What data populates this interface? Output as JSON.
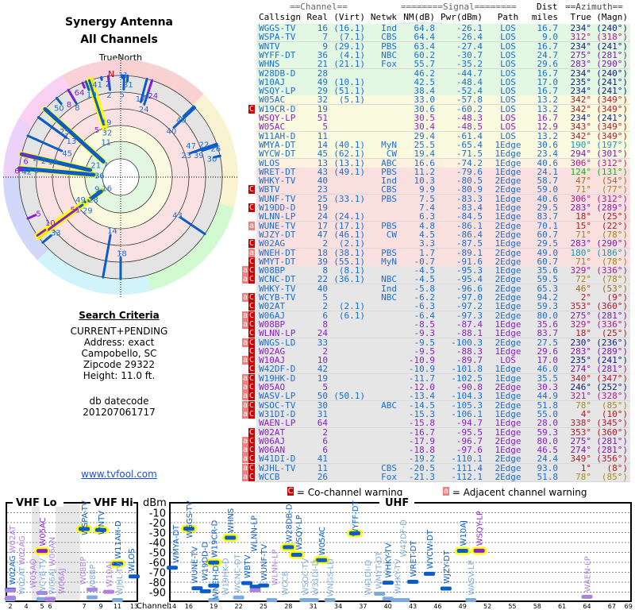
{
  "left": {
    "title1": "Synergy Antenna",
    "title2": "All Channels",
    "north_label": "TrueNorth",
    "n_mark": "N",
    "criteria_title": "Search Criteria",
    "criteria": [
      "CURRENT+PENDING",
      "Address: exact",
      "Campobello, SC",
      "Zipcode 29322",
      "Height: 11.0 ft."
    ],
    "db_label": "db datecode",
    "db_value": "201207061717",
    "link": "www.tvfool.com"
  },
  "table": {
    "group_headers": {
      "channel": "==Channel==",
      "signal": "========Signal========",
      "dist": "Dist",
      "azimuth": "==Azimuth=="
    },
    "columns": [
      "Callsign",
      "Real",
      "(Virt)",
      "Netwk",
      "NM(dB)",
      "Pwr(dBm)",
      "Path",
      "miles",
      "True",
      "(Magn)"
    ],
    "rows": [
      [
        "WGGS-TV",
        "16",
        "(16.1)",
        "Ind",
        "64.8",
        "-26.1",
        "LOS",
        "16.7",
        "234°",
        "(240°)",
        "",
        "green",
        0
      ],
      [
        "WSPA-TV",
        "7",
        "(7.1)",
        "CBS",
        "64.4",
        "-26.4",
        "LOS",
        "9.0",
        "312°",
        "(318°)",
        "",
        "green",
        0
      ],
      [
        "WNTV",
        "9",
        "(29.1)",
        "PBS",
        "63.4",
        "-27.4",
        "LOS",
        "16.7",
        "234°",
        "(241°)",
        "",
        "green",
        0
      ],
      [
        "WYFF-DT",
        "36",
        "(4.1)",
        "NBC",
        "60.2",
        "-30.7",
        "LOS",
        "24.7",
        "275°",
        "(281°)",
        "",
        "green",
        0
      ],
      [
        "WHNS",
        "21",
        "(21.1)",
        "Fox",
        "55.7",
        "-35.2",
        "LOS",
        "29.6",
        "283°",
        "(290°)",
        "",
        "green",
        0
      ],
      [
        "W28DB-D",
        "28",
        "",
        "",
        "46.2",
        "-44.7",
        "LOS",
        "16.7",
        "234°",
        "(240°)",
        "",
        "green",
        0
      ],
      [
        "W10AJ",
        "49",
        "(10.1)",
        "",
        "42.5",
        "-48.4",
        "LOS",
        "17.0",
        "235°",
        "(241°)",
        "",
        "green",
        0
      ],
      [
        "WSQY-LP",
        "29",
        "(51.1)",
        "",
        "38.4",
        "-52.4",
        "LOS",
        "16.7",
        "234°",
        "(241°)",
        "",
        "green",
        0
      ],
      [
        "W05AC",
        "32",
        "(5.1)",
        "",
        "33.0",
        "-57.8",
        "LOS",
        "13.2",
        "342°",
        "(349°)",
        "",
        "yellow",
        0
      ],
      [
        "W19CR-D",
        "19",
        "",
        "",
        "30.6",
        "-60.2",
        "LOS",
        "13.2",
        "342°",
        "(349°)",
        "C",
        "yellow",
        0
      ],
      [
        "WSQY-LP",
        "51",
        "",
        "",
        "30.5",
        "-48.3",
        "LOS",
        "16.7",
        "234°",
        "(241°)",
        "",
        "yellow",
        1
      ],
      [
        "W05AC",
        "5",
        "",
        "",
        "30.4",
        "-48.5",
        "LOS",
        "12.9",
        "343°",
        "(349°)",
        "",
        "yellow",
        1
      ],
      [
        "W11AH-D",
        "11",
        "",
        "",
        "29.4",
        "-61.4",
        "LOS",
        "13.2",
        "342°",
        "(349°)",
        "",
        "yellow",
        0
      ],
      [
        "WMYA-DT",
        "14",
        "(40.1)",
        "MyN",
        "25.5",
        "-65.4",
        "1Edge",
        "30.6",
        "190°",
        "(197°)",
        "",
        "yellow",
        0
      ],
      [
        "WYCW-DT",
        "45",
        "(62.1)",
        "CW",
        "19.4",
        "-71.5",
        "1Edge",
        "23.4",
        "294°",
        "(301°)",
        "",
        "yellow",
        0
      ],
      [
        "WLOS",
        "13",
        "(13.1)",
        "ABC",
        "16.6",
        "-74.2",
        "1Edge",
        "40.6",
        "306°",
        "(312°)",
        "",
        "orange",
        0
      ],
      [
        "WRET-DT",
        "43",
        "(49.1)",
        "PBS",
        "11.2",
        "-79.6",
        "1Edge",
        "24.1",
        "124°",
        "(131°)",
        "",
        "pink",
        0
      ],
      [
        "WHKY-TV",
        "40",
        "",
        "Ind",
        "10.3",
        "-80.5",
        "2Edge",
        "58.7",
        "47°",
        "(54°)",
        "",
        "pink",
        0
      ],
      [
        "WBTV",
        "23",
        "",
        "CBS",
        "9.9",
        "-80.9",
        "2Edge",
        "59.0",
        "71°",
        "(77°)",
        "C",
        "pink",
        0
      ],
      [
        "WUNF-TV",
        "25",
        "(33.1)",
        "PBS",
        "7.5",
        "-83.3",
        "1Edge",
        "40.6",
        "306°",
        "(312°)",
        "",
        "pink",
        0
      ],
      [
        "W19DD-D",
        "19",
        "",
        "",
        "7.4",
        "-83.4",
        "1Edge",
        "29.5",
        "283°",
        "(289°)",
        "C",
        "pink",
        0
      ],
      [
        "WLNN-LP",
        "24",
        "(24.1)",
        "",
        "6.3",
        "-84.5",
        "1Edge",
        "83.7",
        "18°",
        "(25°)",
        "",
        "pink",
        0
      ],
      [
        "WUNE-TV",
        "17",
        "(17.1)",
        "PBS",
        "4.8",
        "-86.1",
        "2Edge",
        "70.1",
        "15°",
        "(22°)",
        "a",
        "pink",
        0
      ],
      [
        "WJZY-DT",
        "47",
        "(46.1)",
        "CW",
        "4.5",
        "-86.4",
        "2Edge",
        "60.7",
        "71°",
        "(78°)",
        "",
        "pink",
        0
      ],
      [
        "W02AG",
        "2",
        "(2.1)",
        "",
        "3.3",
        "-87.5",
        "1Edge",
        "29.5",
        "283°",
        "(290°)",
        "C",
        "pink",
        0
      ],
      [
        "WNEH-DT",
        "18",
        "(38.1)",
        "PBS",
        "1.7",
        "-89.1",
        "2Edge",
        "49.0",
        "180°",
        "(186°)",
        "a",
        "pink",
        0
      ],
      [
        "WMYT-DT",
        "39",
        "(55.1)",
        "MyN",
        "-0.7",
        "-91.6",
        "2Edge",
        "60.7",
        "71°",
        "(78°)",
        "C",
        "pink",
        0
      ],
      [
        "W08BP",
        "8",
        "(8.1)",
        "",
        "-4.5",
        "-95.3",
        "1Edge",
        "35.6",
        "329°",
        "(336°)",
        "aC",
        "gray",
        0
      ],
      [
        "WCNC-DT",
        "22",
        "(36.1)",
        "NBC",
        "-4.5",
        "-95.4",
        "2Edge",
        "59.5",
        "72°",
        "(78°)",
        "aC",
        "gray",
        0
      ],
      [
        "WHKY-TV",
        "40",
        "",
        "Ind",
        "-5.8",
        "-96.6",
        "2Edge",
        "65.3",
        "46°",
        "(53°)",
        "",
        "gray",
        0
      ],
      [
        "WCYB-TV",
        "5",
        "",
        "NBC",
        "-6.2",
        "-97.0",
        "2Edge",
        "94.2",
        "2°",
        "(9°)",
        "aC",
        "gray",
        0
      ],
      [
        "W02AT",
        "2",
        "(2.1)",
        "",
        "-6.3",
        "-97.2",
        "1Edge",
        "59.3",
        "353°",
        "(360°)",
        "C",
        "gray",
        0
      ],
      [
        "W06AJ",
        "6",
        "(6.1)",
        "",
        "-6.4",
        "-97.3",
        "2Edge",
        "80.0",
        "275°",
        "(281°)",
        "aC",
        "gray",
        0
      ],
      [
        "W08BP",
        "8",
        "",
        "",
        "-8.5",
        "-87.4",
        "1Edge",
        "35.6",
        "329°",
        "(336°)",
        "aC",
        "gray",
        1
      ],
      [
        "WLNN-LP",
        "24",
        "",
        "",
        "-9.3",
        "-88.1",
        "1Edge",
        "83.7",
        "18°",
        "(25°)",
        "C",
        "gray",
        1
      ],
      [
        "WNGS-LD",
        "33",
        "",
        "",
        "-9.5",
        "-100.3",
        "2Edge",
        "27.5",
        "230°",
        "(236°)",
        "aC",
        "gray",
        0
      ],
      [
        "W02AG",
        "2",
        "",
        "",
        "-9.5",
        "-88.3",
        "1Edge",
        "29.6",
        "283°",
        "(289°)",
        "C",
        "gray",
        1
      ],
      [
        "W10AJ",
        "10",
        "",
        "",
        "-10.9",
        "-89.7",
        "LOS",
        "17.0",
        "235°",
        "(241°)",
        "aC",
        "gray",
        1
      ],
      [
        "W42DF-D",
        "42",
        "",
        "",
        "-10.9",
        "-101.8",
        "1Edge",
        "46.0",
        "274°",
        "(281°)",
        "C",
        "gray",
        0
      ],
      [
        "W19HK-D",
        "19",
        "",
        "",
        "-11.7",
        "-102.5",
        "1Edge",
        "35.5",
        "340°",
        "(347°)",
        "aC",
        "gray",
        0
      ],
      [
        "W05AO",
        "5",
        "",
        "",
        "-12.0",
        "-90.8",
        "2Edge",
        "30.3",
        "246°",
        "(252°)",
        "aC",
        "gray",
        1
      ],
      [
        "WASV-LP",
        "50",
        "(50.1)",
        "",
        "-13.4",
        "-104.3",
        "1Edge",
        "44.9",
        "321°",
        "(328°)",
        "aC",
        "gray",
        0
      ],
      [
        "WSOC-TV",
        "30",
        "",
        "ABC",
        "-14.5",
        "-105.3",
        "2Edge",
        "51.8",
        "78°",
        "(85°)",
        "aC",
        "gray",
        0
      ],
      [
        "W31DI-D",
        "31",
        "",
        "",
        "-15.3",
        "-106.1",
        "1Edge",
        "55.0",
        "4°",
        "(10°)",
        "aC",
        "gray",
        0
      ],
      [
        "WAEN-LP",
        "64",
        "",
        "",
        "-15.8",
        "-94.7",
        "1Edge",
        "28.0",
        "338°",
        "(345°)",
        "",
        "gray",
        1
      ],
      [
        "W02AT",
        "2",
        "",
        "",
        "-16.7",
        "-95.5",
        "1Edge",
        "59.3",
        "353°",
        "(360°)",
        "C",
        "gray",
        1
      ],
      [
        "W06AJ",
        "6",
        "",
        "",
        "-17.9",
        "-96.7",
        "2Edge",
        "80.0",
        "275°",
        "(281°)",
        "aC",
        "gray",
        1
      ],
      [
        "W06AN",
        "6",
        "",
        "",
        "-18.8",
        "-97.6",
        "1Edge",
        "46.5",
        "274°",
        "(281°)",
        "aC",
        "gray",
        1
      ],
      [
        "W41DI-D",
        "41",
        "",
        "",
        "-19.2",
        "-110.1",
        "2Edge",
        "24.4",
        "349°",
        "(356°)",
        "aC",
        "gray",
        0
      ],
      [
        "WJHL-TV",
        "11",
        "",
        "CBS",
        "-20.5",
        "-111.4",
        "2Edge",
        "93.0",
        "1°",
        "(8°)",
        "aC",
        "gray",
        0
      ],
      [
        "WCCB",
        "26",
        "",
        "Fox",
        "-21.3",
        "-112.1",
        "2Edge",
        "51.8",
        "78°",
        "(85°)",
        "aC",
        "gray",
        0
      ]
    ]
  },
  "legend": {
    "co_flag": "C",
    "co_text": "= Co-channel warning",
    "adj_flag": "a",
    "adj_text": "= Adjacent channel warning"
  },
  "spectrum": {
    "vhf_lo": "VHF Lo",
    "vhf_hi": "VHF Hi",
    "uhf": "UHF",
    "unit": "dBm",
    "channel_label": "Channel",
    "dbm_ticks": [
      "-10",
      "-20",
      "-30",
      "-40",
      "-50",
      "-60",
      "-70",
      "-80",
      "-90"
    ],
    "vhf_channel_ticks": [
      "2",
      "4",
      "5",
      "6",
      "7",
      "9",
      "11",
      "13"
    ],
    "uhf_channel_ticks": [
      "14",
      "16",
      "19",
      "22",
      "25",
      "28",
      "31",
      "34",
      "37",
      "40",
      "43",
      "46",
      "49",
      "52",
      "55",
      "58",
      "61",
      "64",
      "67",
      "69"
    ]
  },
  "colors": {
    "green": "#e2f8e2",
    "yellow": "#fafade",
    "orange": "#fdf2e0",
    "pink": "#fbe0e0",
    "gray": "#e6e6e6",
    "digital": "#1a6ed8",
    "analog": "#8a1fd0",
    "co_flag": "#cc0000",
    "adj_flag": "#f08080"
  }
}
